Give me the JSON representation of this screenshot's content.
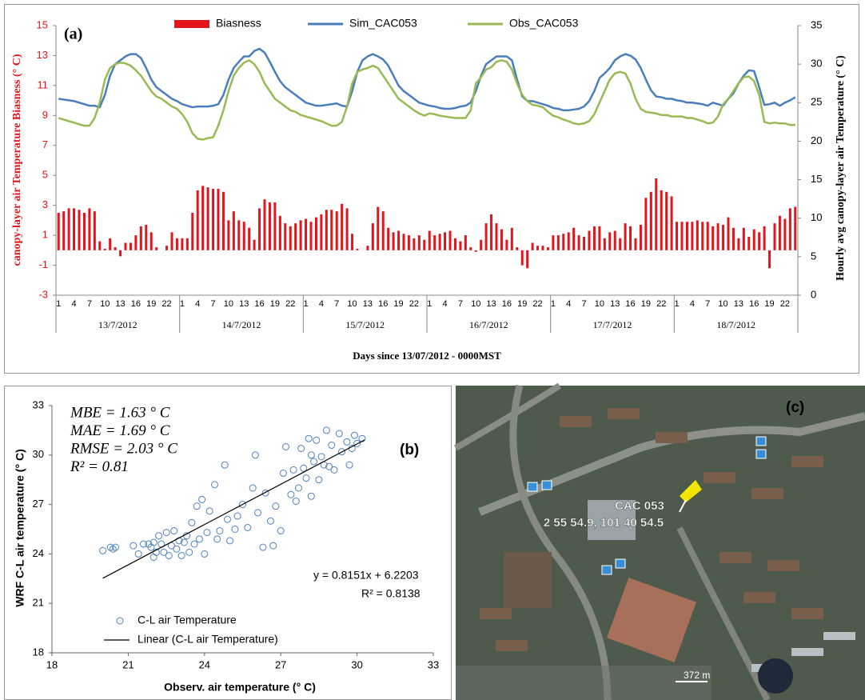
{
  "chart_data": [
    {
      "type": "combo",
      "panel_label": "(a)",
      "categories": [
        "1",
        null,
        null,
        "4",
        null,
        null,
        "7",
        null,
        null,
        "10",
        null,
        null,
        "13",
        null,
        null,
        "16",
        null,
        null,
        "19",
        null,
        null,
        "22",
        null,
        null,
        "1",
        null,
        null,
        "4",
        null,
        null,
        "7",
        null,
        null,
        "10",
        null,
        null,
        "13",
        null,
        null,
        "16",
        null,
        null,
        "19",
        null,
        null,
        "22",
        null,
        null,
        "1",
        null,
        null,
        "4",
        null,
        null,
        "7",
        null,
        null,
        "10",
        null,
        null,
        "13",
        null,
        null,
        "16",
        null,
        null,
        "19",
        null,
        null,
        "22",
        null,
        null,
        "1",
        null,
        null,
        "4",
        null,
        null,
        "7",
        null,
        null,
        "10",
        null,
        null,
        "13",
        null,
        null,
        "16",
        null,
        null,
        "19",
        null,
        null,
        "22",
        null,
        null,
        "1",
        null,
        null,
        "4",
        null,
        null,
        "7",
        null,
        null,
        "10",
        null,
        null,
        "13",
        null,
        null,
        "16",
        null,
        null,
        "19",
        null,
        null,
        "22",
        null,
        null,
        "1",
        null,
        null,
        "4",
        null,
        null,
        "7",
        null,
        null,
        "10",
        null,
        null,
        "13",
        null,
        null,
        "16",
        null,
        null,
        "19",
        null,
        null,
        "22",
        null,
        null
      ],
      "x_groups": [
        "13/7/2012",
        "14/7/2012",
        "15/7/2012",
        "16/7/2012",
        "17/7/2012",
        "18/7/2012"
      ],
      "xlabel": "Days since 13/07/2012 - 0000MST",
      "ylabel": "canopy-layer air Temperature Biasness (° C)",
      "y2label": "Hourly avg canopy-layer air Temperature (° C)",
      "ylim": [
        -3,
        15
      ],
      "yticks": [
        -3,
        -1,
        1,
        3,
        5,
        7,
        9,
        11,
        13,
        15
      ],
      "y2lim": [
        0,
        35
      ],
      "y2ticks": [
        0,
        5,
        10,
        15,
        20,
        25,
        30,
        35
      ],
      "series": [
        {
          "name": "Biasness",
          "type": "bar",
          "color": "#e3141c",
          "values": [
            2.5,
            2.6,
            2.8,
            2.8,
            2.7,
            2.5,
            2.8,
            2.6,
            0.6,
            0.1,
            0.8,
            0.2,
            -0.4,
            0.5,
            0.5,
            1.0,
            1.6,
            1.7,
            1.2,
            0.2,
            0.0,
            0.3,
            1.2,
            0.8,
            0.8,
            0.8,
            2.5,
            4.0,
            4.3,
            4.2,
            4.1,
            4.1,
            3.9,
            2.0,
            2.6,
            2.0,
            1.9,
            1.5,
            0.7,
            2.8,
            3.4,
            3.2,
            3.2,
            2.3,
            1.8,
            1.6,
            1.8,
            2.0,
            2.1,
            1.9,
            2.2,
            2.4,
            2.7,
            2.7,
            2.6,
            3.1,
            2.8,
            1.1,
            0.1,
            0.0,
            0.3,
            1.8,
            2.9,
            2.6,
            1.5,
            1.2,
            1.3,
            1.1,
            1.0,
            0.8,
            1.0,
            0.7,
            1.3,
            1.0,
            1.1,
            1.2,
            1.3,
            0.8,
            0.6,
            1.0,
            0.2,
            -0.1,
            0.7,
            1.8,
            2.4,
            1.8,
            1.4,
            0.7,
            1.5,
            0.2,
            -1.0,
            -1.2,
            0.5,
            0.3,
            0.3,
            0.2,
            1.0,
            1.0,
            1.1,
            1.2,
            1.5,
            1.0,
            0.9,
            1.3,
            1.6,
            1.6,
            0.8,
            1.2,
            1.3,
            0.8,
            1.8,
            1.6,
            0.8,
            1.7,
            3.5,
            3.9,
            4.8,
            4.0,
            3.9,
            3.6,
            1.9,
            1.9,
            1.9,
            1.9,
            2.0,
            1.9,
            1.9,
            1.6,
            1.8,
            1.7,
            2.2,
            1.5,
            0.8,
            1.5,
            0.9,
            1.4,
            1.2,
            1.6,
            -1.2,
            1.8,
            2.3,
            2.1,
            2.8,
            2.9
          ]
        },
        {
          "name": "Sim_CAC053",
          "type": "line",
          "axis": "y2",
          "color": "#4a7ebb",
          "values": [
            25.5,
            25.4,
            25.3,
            25.2,
            25.0,
            24.8,
            24.6,
            24.6,
            24.4,
            26.0,
            28.5,
            30.0,
            30.5,
            31.0,
            31.3,
            31.3,
            30.8,
            29.5,
            28.0,
            27.0,
            26.5,
            26.0,
            25.5,
            25.2,
            24.8,
            24.6,
            24.4,
            24.5,
            24.5,
            24.5,
            24.6,
            24.8,
            26.0,
            28.0,
            29.5,
            30.3,
            31.0,
            31.0,
            31.7,
            32.0,
            31.5,
            30.3,
            29.0,
            27.8,
            27.0,
            26.5,
            26.0,
            25.5,
            25.0,
            24.8,
            24.6,
            24.6,
            24.7,
            24.8,
            24.9,
            24.6,
            24.5,
            26.5,
            29.0,
            30.5,
            31.0,
            31.3,
            31.0,
            30.6,
            29.8,
            28.5,
            27.2,
            26.5,
            26.0,
            25.5,
            25.0,
            24.8,
            24.6,
            24.5,
            24.3,
            24.2,
            24.2,
            24.3,
            24.5,
            24.6,
            25.0,
            26.5,
            28.5,
            30.0,
            30.5,
            31.0,
            31.0,
            31.0,
            30.5,
            28.0,
            25.8,
            25.2,
            25.2,
            25.0,
            24.8,
            24.6,
            24.3,
            24.2,
            24.0,
            24.0,
            24.1,
            24.2,
            24.5,
            25.2,
            26.5,
            28.2,
            28.8,
            29.5,
            30.5,
            31.0,
            31.3,
            31.1,
            30.6,
            29.5,
            28.0,
            26.6,
            25.8,
            25.7,
            25.5,
            25.5,
            25.3,
            25.2,
            25.0,
            25.0,
            24.9,
            24.8,
            24.6,
            25.0,
            24.8,
            24.6,
            25.5,
            26.2,
            27.5,
            28.5,
            29.2,
            29.1,
            27.0,
            24.7,
            24.8,
            25.0,
            24.6,
            25.0,
            25.3,
            25.7
          ]
        },
        {
          "name": "Obs_CAC053",
          "type": "line",
          "axis": "y2",
          "color": "#98b954",
          "values": [
            23.0,
            22.8,
            22.6,
            22.4,
            22.2,
            22.0,
            22.0,
            23.0,
            25.0,
            28.0,
            29.5,
            30.0,
            30.2,
            30.1,
            29.8,
            29.2,
            28.5,
            27.5,
            26.5,
            25.8,
            25.5,
            25.0,
            24.5,
            24.2,
            23.5,
            22.5,
            21.0,
            20.3,
            20.2,
            20.4,
            20.5,
            22.0,
            24.0,
            26.5,
            28.5,
            29.5,
            30.2,
            30.5,
            30.0,
            29.0,
            27.5,
            26.5,
            25.5,
            25.0,
            24.5,
            24.0,
            23.8,
            23.4,
            23.2,
            23.0,
            22.8,
            22.6,
            22.3,
            22.0,
            22.0,
            22.5,
            24.5,
            27.5,
            29.0,
            29.3,
            29.5,
            29.8,
            29.5,
            28.5,
            27.5,
            26.5,
            25.5,
            25.0,
            24.5,
            24.0,
            23.6,
            23.3,
            23.6,
            23.5,
            23.3,
            23.2,
            23.1,
            23.0,
            23.0,
            23.0,
            24.0,
            27.5,
            28.3,
            29.3,
            29.6,
            30.3,
            30.5,
            30.3,
            29.3,
            27.5,
            26.0,
            25.2,
            24.7,
            24.6,
            24.4,
            23.8,
            23.3,
            23.1,
            22.8,
            22.6,
            22.3,
            22.2,
            22.3,
            22.6,
            23.5,
            25.0,
            26.5,
            28.0,
            28.8,
            29.0,
            28.8,
            27.5,
            25.5,
            24.2,
            23.8,
            23.7,
            23.6,
            23.4,
            23.4,
            23.2,
            23.2,
            23.2,
            23.0,
            23.0,
            22.8,
            22.6,
            22.3,
            22.4,
            23.2,
            24.8,
            25.5,
            26.5,
            27.5,
            28.3,
            28.4,
            27.8,
            26.0,
            22.5,
            22.3,
            22.4,
            22.3,
            22.3,
            22.1,
            22.1
          ]
        }
      ]
    },
    {
      "type": "scatter",
      "panel_label": "(b)",
      "stats": [
        "MBE = 1.63 ° C",
        "MAE = 1.69 ° C",
        "RMSE = 2.03 ° C",
        "R² = 0.81"
      ],
      "xlabel": "Observ. air temperature (° C)",
      "ylabel": "WRF C-L air temperature (° C)",
      "xlim": [
        18,
        33
      ],
      "xticks": [
        18,
        21,
        24,
        27,
        30,
        33
      ],
      "ylim": [
        18,
        33
      ],
      "yticks": [
        18,
        21,
        24,
        27,
        30,
        33
      ],
      "series": [
        {
          "name": "C-L air Temperature",
          "color": "#4f81bd",
          "x": [
            20,
            20.3,
            20.4,
            20.5,
            21.2,
            21.4,
            21.6,
            21.8,
            21.9,
            22,
            22,
            22.1,
            22.2,
            22.3,
            22.4,
            22.5,
            22.6,
            22.7,
            22.8,
            22.9,
            23,
            23.1,
            23.2,
            23.3,
            23.4,
            23.5,
            23.6,
            23.7,
            23.8,
            23.9,
            24,
            24.1,
            24.2,
            24.4,
            24.5,
            24.6,
            24.8,
            24.9,
            25,
            25.2,
            25.3,
            25.5,
            25.7,
            25.9,
            26,
            26.1,
            26.3,
            26.4,
            26.6,
            26.7,
            26.8,
            27,
            27.1,
            27.2,
            27.4,
            27.5,
            27.6,
            27.8,
            27.9,
            28,
            28.1,
            28.2,
            28.3,
            28.4,
            28.5,
            28.6,
            28.7,
            28.8,
            28.9,
            29,
            29.1,
            29.3,
            29.4,
            29.6,
            29.7,
            29.8,
            29.9,
            30,
            30.2,
            28.2,
            27.7
          ],
          "values": [
            24.2,
            24.4,
            24.3,
            24.4,
            24.5,
            24.0,
            24.6,
            24.6,
            24.4,
            24.7,
            23.8,
            24.1,
            25.1,
            24.6,
            24.1,
            25.3,
            23.9,
            24.5,
            25.4,
            24.3,
            24.8,
            23.9,
            24.7,
            25.1,
            24.1,
            25.9,
            24.6,
            26.9,
            24.9,
            27.3,
            24.0,
            25.3,
            26.6,
            28.2,
            24.9,
            25.4,
            29.4,
            26.1,
            24.8,
            25.5,
            26.3,
            27.0,
            25.6,
            28.0,
            30.0,
            26.5,
            24.4,
            27.7,
            26.0,
            24.5,
            26.9,
            25.4,
            28.9,
            30.5,
            27.6,
            29.1,
            27.2,
            30.4,
            29.2,
            28.6,
            31.0,
            27.5,
            29.6,
            30.9,
            28.5,
            29.9,
            29.4,
            31.5,
            29.3,
            30.6,
            29.1,
            31.3,
            30.2,
            30.8,
            29.4,
            30.4,
            31.2,
            30.7,
            31.0,
            30.0,
            28.0
          ]
        }
      ],
      "fit": {
        "name": "Linear (C-L air Temperature)",
        "equation": "y = 0.8151x + 6.2203",
        "r2": "R² = 0.8138",
        "slope": 0.8151,
        "intercept": 6.2203,
        "xrange": [
          20,
          30.3
        ],
        "color": "#000000"
      }
    }
  ],
  "map": {
    "panel_label": "(c)",
    "marker_label": "CAC 053",
    "coordinates": "2 55 54.9, 101 40 54.5",
    "scale": "372 m"
  }
}
